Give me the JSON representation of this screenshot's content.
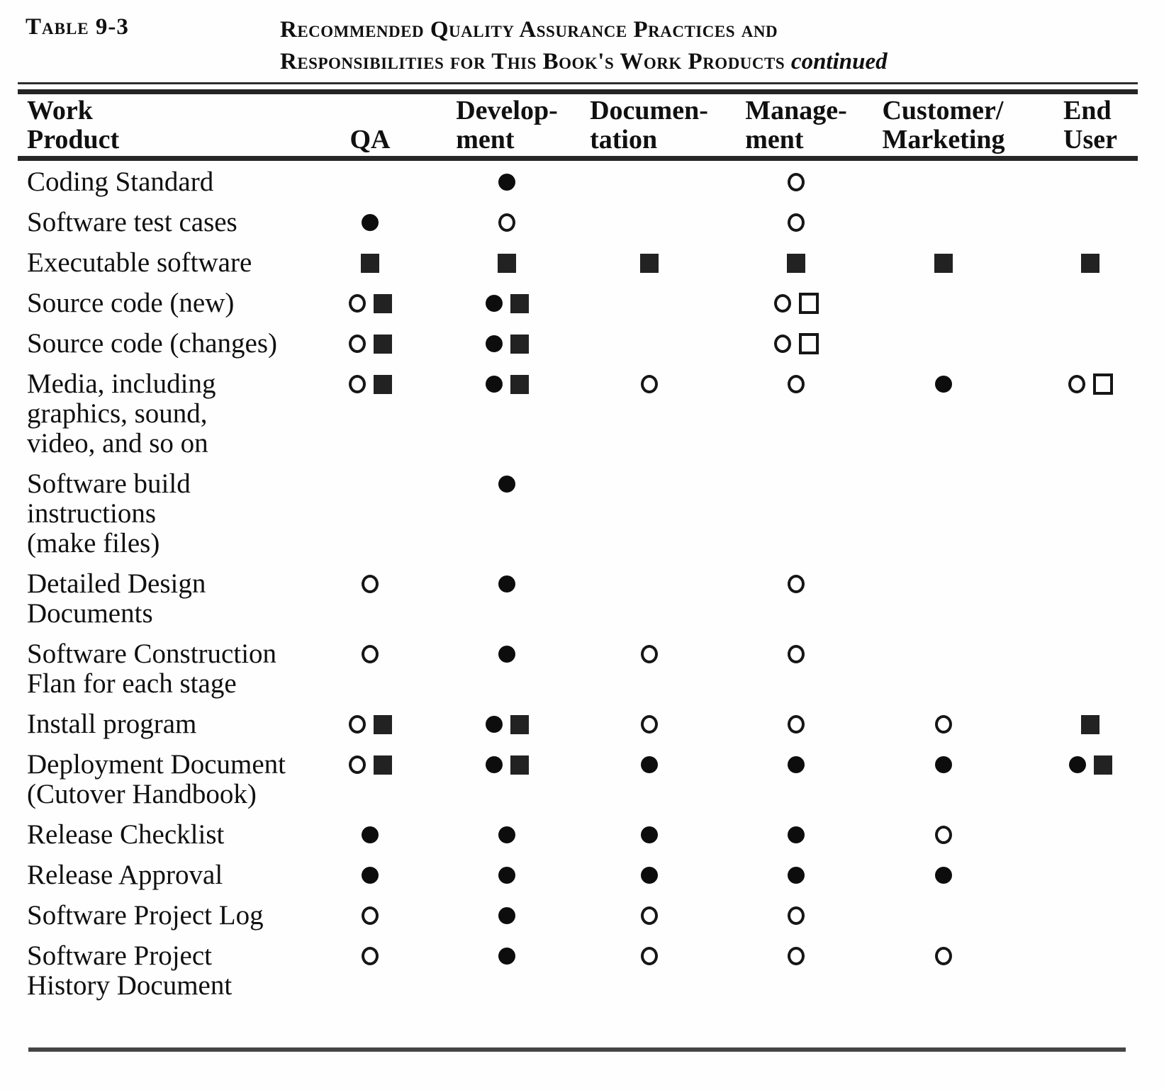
{
  "page": {
    "table_label": "Table 9-3",
    "title_line1": "Recommended Quality Assurance Practices and",
    "title_line2": "Responsibilities for This Book's Work Products",
    "title_continued": "continued"
  },
  "columns": [
    {
      "id": "work_product",
      "label": "Work\nProduct"
    },
    {
      "id": "qa",
      "label": "QA"
    },
    {
      "id": "development",
      "label": "Develop-\nment"
    },
    {
      "id": "documentation",
      "label": "Documen-\ntation"
    },
    {
      "id": "management",
      "label": "Manage-\nment"
    },
    {
      "id": "customer_marketing",
      "label": "Customer/\nMarketing"
    },
    {
      "id": "end_user",
      "label": "End\nUser"
    }
  ],
  "symbols": {
    "filled-circle": "●",
    "open-circle": "○",
    "filled-square": "■",
    "open-square": "□"
  },
  "rows": [
    {
      "label": "Coding Standard",
      "cells": [
        [],
        [
          "filled-circle"
        ],
        [],
        [
          "open-circle"
        ],
        [],
        []
      ]
    },
    {
      "label": "Software test cases",
      "cells": [
        [
          "filled-circle"
        ],
        [
          "open-circle"
        ],
        [],
        [
          "open-circle"
        ],
        [],
        []
      ]
    },
    {
      "label": "Executable software",
      "cells": [
        [
          "filled-square"
        ],
        [
          "filled-square"
        ],
        [
          "filled-square"
        ],
        [
          "filled-square"
        ],
        [
          "filled-square"
        ],
        [
          "filled-square"
        ]
      ]
    },
    {
      "label": "Source code (new)",
      "cells": [
        [
          "open-circle",
          "filled-square"
        ],
        [
          "filled-circle",
          "filled-square"
        ],
        [],
        [
          "open-circle",
          "open-square"
        ],
        [],
        []
      ]
    },
    {
      "label": "Source code (changes)",
      "cells": [
        [
          "open-circle",
          "filled-square"
        ],
        [
          "filled-circle",
          "filled-square"
        ],
        [],
        [
          "open-circle",
          "open-square"
        ],
        [],
        []
      ]
    },
    {
      "label": "Media, including\ngraphics, sound,\nvideo, and so on",
      "cells": [
        [
          "open-circle",
          "filled-square"
        ],
        [
          "filled-circle",
          "filled-square"
        ],
        [
          "open-circle"
        ],
        [
          "open-circle"
        ],
        [
          "filled-circle"
        ],
        [
          "open-circle",
          "open-square"
        ]
      ]
    },
    {
      "label": "Software build\ninstructions\n(make files)",
      "cells": [
        [],
        [
          "filled-circle"
        ],
        [],
        [],
        [],
        []
      ]
    },
    {
      "label": "Detailed Design\nDocuments",
      "cells": [
        [
          "open-circle"
        ],
        [
          "filled-circle"
        ],
        [],
        [
          "open-circle"
        ],
        [],
        []
      ]
    },
    {
      "label": "Software Construction\nFlan for each stage",
      "cells": [
        [
          "open-circle"
        ],
        [
          "filled-circle"
        ],
        [
          "open-circle"
        ],
        [
          "open-circle"
        ],
        [],
        []
      ]
    },
    {
      "label": "Install program",
      "cells": [
        [
          "open-circle",
          "filled-square"
        ],
        [
          "filled-circle",
          "filled-square"
        ],
        [
          "open-circle"
        ],
        [
          "open-circle"
        ],
        [
          "open-circle"
        ],
        [
          "filled-square"
        ]
      ]
    },
    {
      "label": "Deployment Document\n(Cutover Handbook)",
      "cells": [
        [
          "open-circle",
          "filled-square"
        ],
        [
          "filled-circle",
          "filled-square"
        ],
        [
          "filled-circle"
        ],
        [
          "filled-circle"
        ],
        [
          "filled-circle"
        ],
        [
          "filled-circle",
          "filled-square"
        ]
      ]
    },
    {
      "label": "Release Checklist",
      "cells": [
        [
          "filled-circle"
        ],
        [
          "filled-circle"
        ],
        [
          "filled-circle"
        ],
        [
          "filled-circle"
        ],
        [
          "open-circle"
        ],
        []
      ]
    },
    {
      "label": "Release Approval",
      "cells": [
        [
          "filled-circle"
        ],
        [
          "filled-circle"
        ],
        [
          "filled-circle"
        ],
        [
          "filled-circle"
        ],
        [
          "filled-circle"
        ],
        []
      ]
    },
    {
      "label": "Software Project Log",
      "cells": [
        [
          "open-circle"
        ],
        [
          "filled-circle"
        ],
        [
          "open-circle"
        ],
        [
          "open-circle"
        ],
        [],
        []
      ]
    },
    {
      "label": "Software Project\nHistory Document",
      "cells": [
        [
          "open-circle"
        ],
        [
          "filled-circle"
        ],
        [
          "open-circle"
        ],
        [
          "open-circle"
        ],
        [
          "open-circle"
        ],
        []
      ]
    }
  ]
}
